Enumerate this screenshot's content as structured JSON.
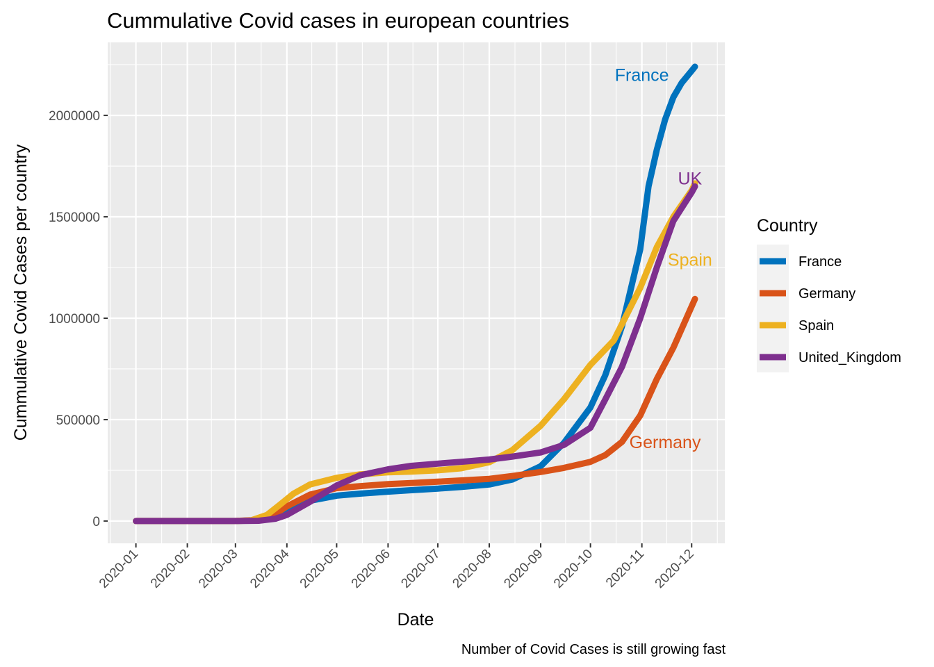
{
  "chart_data": {
    "type": "line",
    "title": "Cummulative Covid cases in european countries",
    "xlabel": "Date",
    "ylabel": "Cummulative Covid Cases per country",
    "caption": "Number of Covid Cases is still growing fast",
    "x_ticks": [
      "2020-01",
      "2020-02",
      "2020-03",
      "2020-04",
      "2020-05",
      "2020-06",
      "2020-07",
      "2020-08",
      "2020-09",
      "2020-10",
      "2020-11",
      "2020-12"
    ],
    "y_ticks": [
      "0",
      "500000",
      "1000000",
      "1500000",
      "2000000"
    ],
    "xlim": [
      "2019-12-15",
      "2020-12-21"
    ],
    "ylim": [
      -110000,
      2360000
    ],
    "grid": true,
    "legend": {
      "title": "Country",
      "position": "right"
    },
    "series": [
      {
        "name": "France",
        "color": "#0072BD",
        "label": "France",
        "points": [
          [
            "2020-01-01",
            0
          ],
          [
            "2020-02-01",
            0
          ],
          [
            "2020-03-01",
            100
          ],
          [
            "2020-03-15",
            4500
          ],
          [
            "2020-03-25",
            22000
          ],
          [
            "2020-04-01",
            52000
          ],
          [
            "2020-04-15",
            100000
          ],
          [
            "2020-05-01",
            125000
          ],
          [
            "2020-05-15",
            135000
          ],
          [
            "2020-06-01",
            145000
          ],
          [
            "2020-06-15",
            152000
          ],
          [
            "2020-07-01",
            160000
          ],
          [
            "2020-07-15",
            168000
          ],
          [
            "2020-08-01",
            180000
          ],
          [
            "2020-08-15",
            205000
          ],
          [
            "2020-09-01",
            270000
          ],
          [
            "2020-09-15",
            385000
          ],
          [
            "2020-10-01",
            560000
          ],
          [
            "2020-10-10",
            720000
          ],
          [
            "2020-10-20",
            960000
          ],
          [
            "2020-10-31",
            1340000
          ],
          [
            "2020-11-05",
            1650000
          ],
          [
            "2020-11-10",
            1830000
          ],
          [
            "2020-11-15",
            1980000
          ],
          [
            "2020-11-20",
            2090000
          ],
          [
            "2020-11-25",
            2160000
          ],
          [
            "2020-12-01",
            2220000
          ],
          [
            "2020-12-03",
            2240000
          ]
        ]
      },
      {
        "name": "Germany",
        "color": "#D95319",
        "label": "Germany",
        "points": [
          [
            "2020-01-01",
            0
          ],
          [
            "2020-02-01",
            0
          ],
          [
            "2020-03-01",
            150
          ],
          [
            "2020-03-15",
            5000
          ],
          [
            "2020-03-25",
            35000
          ],
          [
            "2020-04-01",
            72000
          ],
          [
            "2020-04-15",
            130000
          ],
          [
            "2020-05-01",
            162000
          ],
          [
            "2020-05-15",
            172000
          ],
          [
            "2020-06-01",
            182000
          ],
          [
            "2020-06-15",
            187000
          ],
          [
            "2020-07-01",
            194000
          ],
          [
            "2020-07-15",
            200000
          ],
          [
            "2020-08-01",
            208000
          ],
          [
            "2020-08-15",
            222000
          ],
          [
            "2020-09-01",
            242000
          ],
          [
            "2020-09-15",
            262000
          ],
          [
            "2020-10-01",
            292000
          ],
          [
            "2020-10-10",
            325000
          ],
          [
            "2020-10-20",
            390000
          ],
          [
            "2020-10-31",
            520000
          ],
          [
            "2020-11-10",
            700000
          ],
          [
            "2020-11-20",
            855000
          ],
          [
            "2020-11-30",
            1040000
          ],
          [
            "2020-12-03",
            1095000
          ]
        ]
      },
      {
        "name": "Spain",
        "color": "#EDB120",
        "label": "Spain",
        "points": [
          [
            "2020-01-01",
            0
          ],
          [
            "2020-02-01",
            0
          ],
          [
            "2020-03-01",
            100
          ],
          [
            "2020-03-10",
            2000
          ],
          [
            "2020-03-20",
            30000
          ],
          [
            "2020-03-28",
            82000
          ],
          [
            "2020-04-05",
            135000
          ],
          [
            "2020-04-15",
            180000
          ],
          [
            "2020-05-01",
            213000
          ],
          [
            "2020-05-15",
            230000
          ],
          [
            "2020-06-01",
            240000
          ],
          [
            "2020-06-15",
            244000
          ],
          [
            "2020-07-01",
            250000
          ],
          [
            "2020-07-15",
            260000
          ],
          [
            "2020-08-01",
            290000
          ],
          [
            "2020-08-15",
            350000
          ],
          [
            "2020-09-01",
            470000
          ],
          [
            "2020-09-15",
            600000
          ],
          [
            "2020-10-01",
            770000
          ],
          [
            "2020-10-15",
            890000
          ],
          [
            "2020-10-31",
            1150000
          ],
          [
            "2020-11-10",
            1350000
          ],
          [
            "2020-11-20",
            1500000
          ],
          [
            "2020-12-01",
            1630000
          ],
          [
            "2020-12-03",
            1665000
          ]
        ]
      },
      {
        "name": "United_Kingdom",
        "color": "#7E2F8E",
        "label": "UK",
        "points": [
          [
            "2020-01-01",
            0
          ],
          [
            "2020-02-01",
            0
          ],
          [
            "2020-03-01",
            50
          ],
          [
            "2020-03-15",
            1500
          ],
          [
            "2020-03-25",
            11000
          ],
          [
            "2020-04-01",
            30000
          ],
          [
            "2020-04-15",
            95000
          ],
          [
            "2020-05-01",
            175000
          ],
          [
            "2020-05-15",
            225000
          ],
          [
            "2020-06-01",
            255000
          ],
          [
            "2020-06-15",
            272000
          ],
          [
            "2020-07-01",
            283000
          ],
          [
            "2020-07-15",
            292000
          ],
          [
            "2020-08-01",
            303000
          ],
          [
            "2020-08-15",
            318000
          ],
          [
            "2020-09-01",
            338000
          ],
          [
            "2020-09-15",
            375000
          ],
          [
            "2020-10-01",
            460000
          ],
          [
            "2020-10-10",
            600000
          ],
          [
            "2020-10-20",
            760000
          ],
          [
            "2020-10-31",
            1000000
          ],
          [
            "2020-11-10",
            1250000
          ],
          [
            "2020-11-20",
            1480000
          ],
          [
            "2020-12-01",
            1620000
          ],
          [
            "2020-12-03",
            1650000
          ]
        ]
      }
    ],
    "annotations": [
      {
        "text": "France",
        "x": "2020-11-01",
        "y": 2200000,
        "color": "#0072BD"
      },
      {
        "text": "UK",
        "x": "2020-11-30",
        "y": 1690000,
        "color": "#7E2F8E"
      },
      {
        "text": "Spain",
        "x": "2020-11-30",
        "y": 1290000,
        "color": "#EDB120"
      },
      {
        "text": "Germany",
        "x": "2020-11-15",
        "y": 390000,
        "color": "#D95319"
      }
    ]
  }
}
